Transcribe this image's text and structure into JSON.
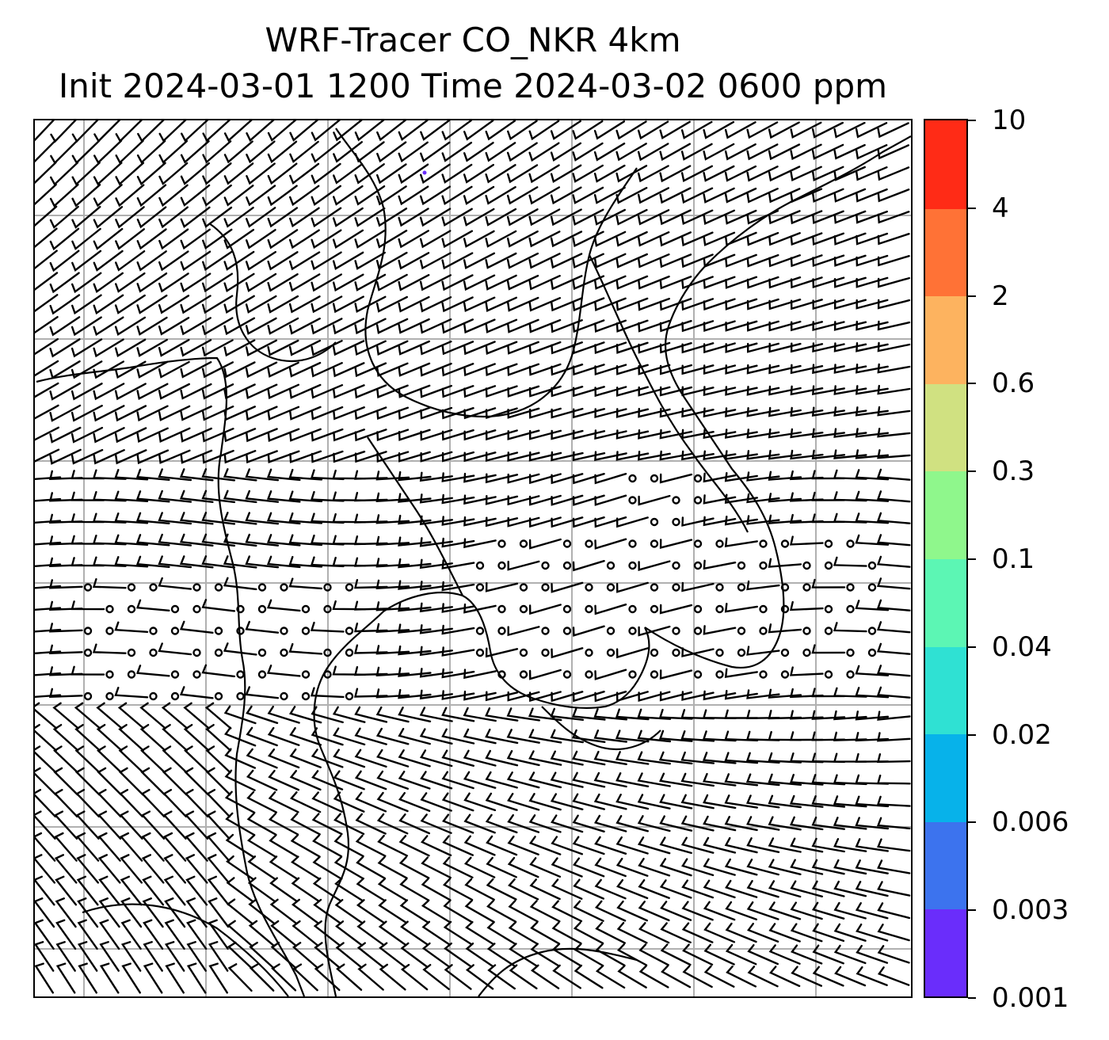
{
  "title": {
    "line1": "WRF-Tracer CO_NKR 4km",
    "line2": "Init 2024-03-01 1200 Time 2024-03-02 0600 ppm"
  },
  "colorbar": {
    "levels": [
      "0.001",
      "0.003",
      "0.006",
      "0.02",
      "0.04",
      "0.1",
      "0.3",
      "0.6",
      "2",
      "4",
      "10"
    ],
    "colors": [
      "#6a2dfb",
      "#3c73ee",
      "#07b2ea",
      "#2fe1d3",
      "#5cf6b4",
      "#8ff78c",
      "#d0e181",
      "#fdb35f",
      "#ff7236",
      "#ff2b16"
    ]
  },
  "map": {
    "grid_color": "#b0b0b0",
    "coastline_color": "#000000",
    "barb_color": "#000000",
    "calm_marker": "open-circle",
    "tracer_coverage": "none visible except trace at top-center"
  }
}
